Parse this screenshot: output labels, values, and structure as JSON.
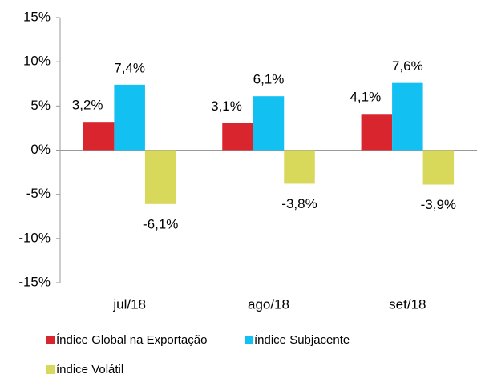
{
  "chart_data": {
    "type": "bar",
    "categories": [
      "jul/18",
      "ago/18",
      "set/18"
    ],
    "series": [
      {
        "name": "Índice Global na Exportação",
        "color": "#d9262e",
        "values": [
          3.2,
          3.1,
          4.1
        ],
        "value_labels": [
          "3,2%",
          "3,1%",
          "4,1%"
        ]
      },
      {
        "name": "índice Subjacente",
        "color": "#12c0f2",
        "values": [
          7.4,
          6.1,
          7.6
        ],
        "value_labels": [
          "7,4%",
          "6,1%",
          "7,6%"
        ]
      },
      {
        "name": "índice Volátil",
        "color": "#d8d95a",
        "values": [
          -6.1,
          -3.8,
          -3.9
        ],
        "value_labels": [
          "-6,1%",
          "-3,8%",
          "-3,9%"
        ]
      }
    ],
    "ylim": [
      -15,
      15
    ],
    "yticks": [
      {
        "value": -15,
        "label": "-15%"
      },
      {
        "value": -10,
        "label": "-10%"
      },
      {
        "value": -5,
        "label": "-5%"
      },
      {
        "value": 0,
        "label": "0%"
      },
      {
        "value": 5,
        "label": "5%"
      },
      {
        "value": 10,
        "label": "10%"
      },
      {
        "value": 15,
        "label": "15%"
      }
    ],
    "grid": false
  }
}
